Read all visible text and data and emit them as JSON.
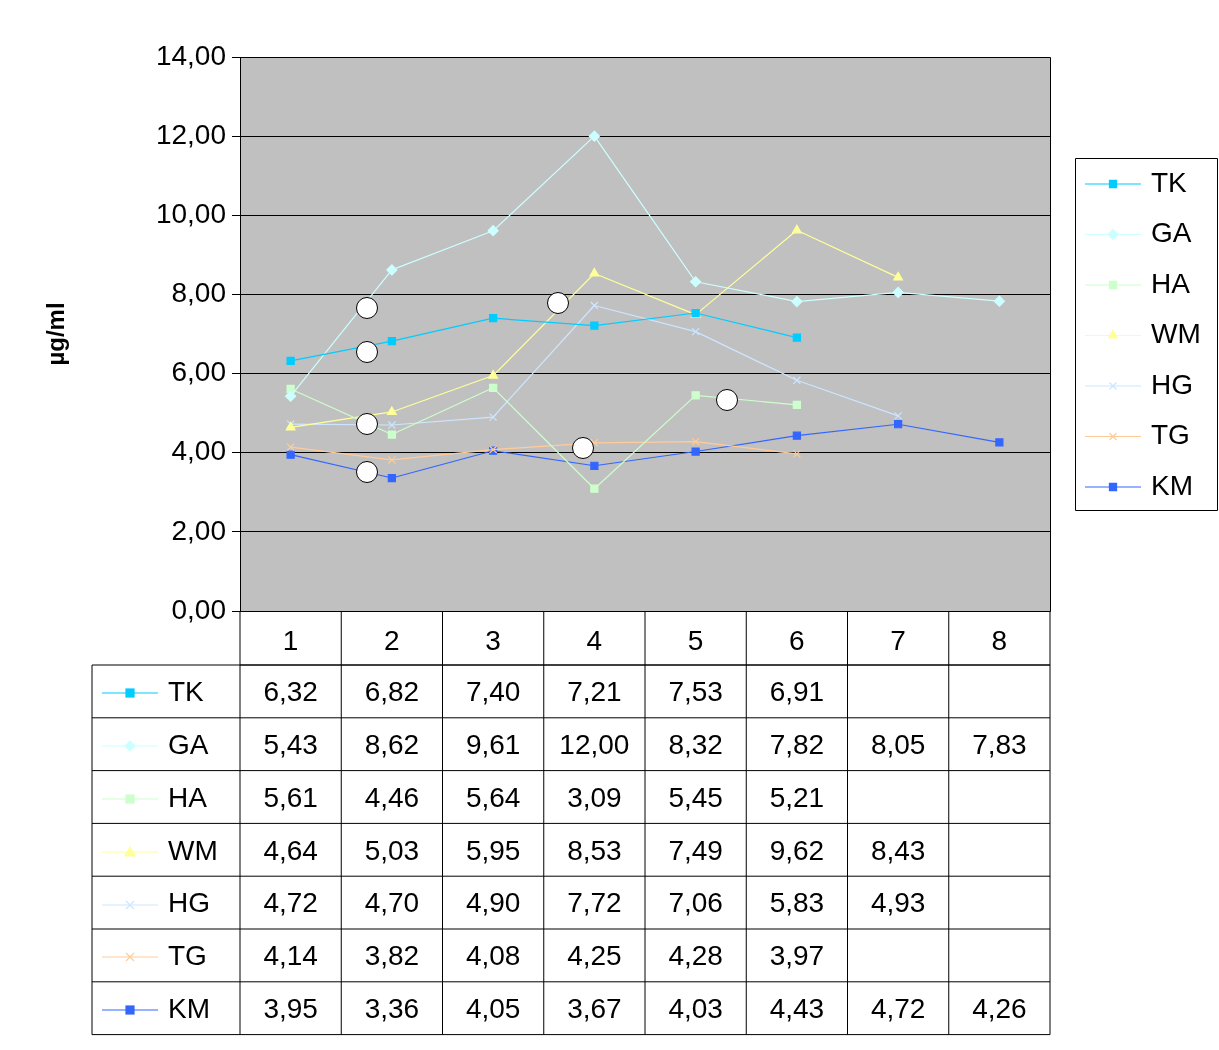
{
  "chart_data": {
    "type": "line",
    "ylabel": "µg/ml",
    "categories": [
      "1",
      "2",
      "3",
      "4",
      "5",
      "6",
      "7",
      "8"
    ],
    "ylim": [
      0,
      14
    ],
    "yticks": [
      {
        "value": 0,
        "label": "0,00"
      },
      {
        "value": 2,
        "label": "2,00"
      },
      {
        "value": 4,
        "label": "4,00"
      },
      {
        "value": 6,
        "label": "6,00"
      },
      {
        "value": 8,
        "label": "8,00"
      },
      {
        "value": 10,
        "label": "10,00"
      },
      {
        "value": 12,
        "label": "12,00"
      },
      {
        "value": 14,
        "label": "14,00"
      }
    ],
    "grid": "y",
    "legend": "right",
    "series": [
      {
        "name": "TK",
        "color": "#00ccff",
        "marker": "square",
        "values": [
          6.32,
          6.82,
          7.4,
          7.21,
          7.53,
          6.91,
          null,
          null
        ],
        "value_labels": [
          "6,32",
          "6,82",
          "7,40",
          "7,21",
          "7,53",
          "6,91",
          null,
          null
        ]
      },
      {
        "name": "GA",
        "color": "#ccffff",
        "marker": "diamond",
        "values": [
          5.43,
          8.62,
          9.61,
          12.0,
          8.32,
          7.82,
          8.05,
          7.83
        ],
        "value_labels": [
          "5,43",
          "8,62",
          "9,61",
          "12,00",
          "8,32",
          "7,82",
          "8,05",
          "7,83"
        ]
      },
      {
        "name": "HA",
        "color": "#ccffcc",
        "marker": "square",
        "values": [
          5.61,
          4.46,
          5.64,
          3.09,
          5.45,
          5.21,
          null,
          null
        ],
        "value_labels": [
          "5,61",
          "4,46",
          "5,64",
          "3,09",
          "5,45",
          "5,21",
          null,
          null
        ]
      },
      {
        "name": "WM",
        "color": "#ffff99",
        "marker": "triangle",
        "values": [
          4.64,
          5.03,
          5.95,
          8.53,
          7.49,
          9.62,
          8.43,
          null
        ],
        "value_labels": [
          "4,64",
          "5,03",
          "5,95",
          "8,53",
          "7,49",
          "9,62",
          "8,43",
          null
        ]
      },
      {
        "name": "HG",
        "color": "#cce6ff",
        "marker": "cross",
        "values": [
          4.72,
          4.7,
          4.9,
          7.72,
          7.06,
          5.83,
          4.93,
          null
        ],
        "value_labels": [
          "4,72",
          "4,70",
          "4,90",
          "7,72",
          "7,06",
          "5,83",
          "4,93",
          null
        ]
      },
      {
        "name": "TG",
        "color": "#ffcc99",
        "marker": "cross",
        "values": [
          4.14,
          3.82,
          4.08,
          4.25,
          4.28,
          3.97,
          null,
          null
        ],
        "value_labels": [
          "4,14",
          "3,82",
          "4,08",
          "4,25",
          "4,28",
          "3,97",
          null,
          null
        ]
      },
      {
        "name": "KM",
        "color": "#3366ff",
        "marker": "square",
        "values": [
          3.95,
          3.36,
          4.05,
          3.67,
          4.03,
          4.43,
          4.72,
          4.26
        ],
        "value_labels": [
          "3,95",
          "3,36",
          "4,05",
          "3,67",
          "4,03",
          "4,43",
          "4,72",
          "4,26"
        ]
      }
    ]
  }
}
